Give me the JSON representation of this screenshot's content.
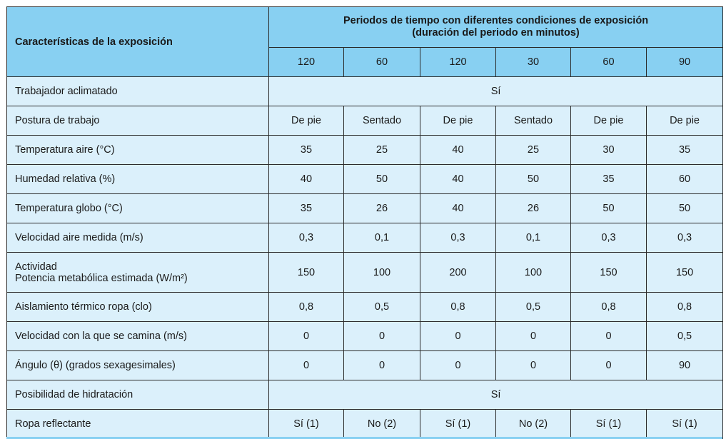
{
  "header": {
    "characteristics": "Características de la exposición",
    "periods_line1": "Periodos de tiempo con diferentes condiciones de exposición",
    "periods_line2": "(duración del periodo en minutos)",
    "durations": [
      "120",
      "60",
      "120",
      "30",
      "60",
      "90"
    ]
  },
  "rows": [
    {
      "label": "Trabajador aclimatado",
      "merged": "Sí"
    },
    {
      "label": "Postura de trabajo",
      "values": [
        "De pie",
        "Sentado",
        "De pie",
        "Sentado",
        "De pie",
        "De pie"
      ]
    },
    {
      "label": "Temperatura aire (°C)",
      "values": [
        "35",
        "25",
        "40",
        "25",
        "30",
        "35"
      ]
    },
    {
      "label": "Humedad relativa (%)",
      "values": [
        "40",
        "50",
        "40",
        "50",
        "35",
        "60"
      ]
    },
    {
      "label": "Temperatura globo (°C)",
      "values": [
        "35",
        "26",
        "40",
        "26",
        "50",
        "50"
      ]
    },
    {
      "label": "Velocidad aire medida (m/s)",
      "values": [
        "0,3",
        "0,1",
        "0,3",
        "0,1",
        "0,3",
        "0,3"
      ]
    },
    {
      "label": "Actividad",
      "label2": "Potencia metabólica estimada (W/m²)",
      "values": [
        "150",
        "100",
        "200",
        "100",
        "150",
        "150"
      ]
    },
    {
      "label": "Aislamiento térmico ropa (clo)",
      "values": [
        "0,8",
        "0,5",
        "0,8",
        "0,5",
        "0,8",
        "0,8"
      ]
    },
    {
      "label": "Velocidad con la que se camina (m/s)",
      "values": [
        "0",
        "0",
        "0",
        "0",
        "0",
        "0,5"
      ]
    },
    {
      "label": "Ángulo (θ) (grados sexagesimales)",
      "values": [
        "0",
        "0",
        "0",
        "0",
        "0",
        "90"
      ]
    },
    {
      "label": "Posibilidad de hidratación",
      "merged": "Sí"
    },
    {
      "label": "Ropa reflectante",
      "values": [
        "Sí (1)",
        "No (2)",
        "Sí (1)",
        "No (2)",
        "Sí (1)",
        "Sí (1)"
      ]
    }
  ]
}
